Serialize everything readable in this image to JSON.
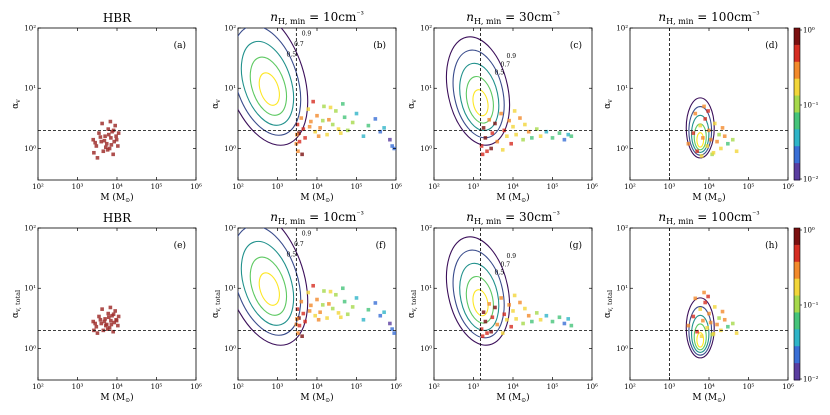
{
  "figure": {
    "colorbar_ticks": [
      "10⁰",
      "10⁻¹",
      "10⁻²"
    ],
    "colorbar_colors": [
      "#5a3da0",
      "#3a6fd6",
      "#2fb4c8",
      "#46c47a",
      "#a6d94c",
      "#f2d63a",
      "#f28a2c",
      "#d62d22",
      "#7a1010"
    ],
    "contour_colors": [
      "#3b0f5a",
      "#3a4c8c",
      "#21918c",
      "#5ec962",
      "#fde725"
    ]
  },
  "chart_data": [
    {
      "type": "scatter",
      "tag": "(a)",
      "title": "HBR",
      "xlabel": "M (M_⊙)",
      "ylabel": "α_v",
      "xlim": [
        100,
        1000000
      ],
      "ylim": [
        0.3,
        100
      ],
      "log_x": true,
      "log_y": true,
      "xticks": [
        "10²",
        "10³",
        "10⁴",
        "10⁵",
        "10⁶"
      ],
      "yticks": [
        "10⁰",
        "10¹",
        "10²"
      ],
      "hline": 2,
      "vline": null,
      "contours": "none",
      "colorbar": false,
      "points": [
        [
          2500,
          1.4
        ],
        [
          3000,
          1.1
        ],
        [
          3500,
          1.8
        ],
        [
          4000,
          1.3
        ],
        [
          4500,
          0.9
        ],
        [
          5000,
          1.6
        ],
        [
          5500,
          1.2
        ],
        [
          6000,
          2.1
        ],
        [
          6500,
          1.0
        ],
        [
          7000,
          1.5
        ],
        [
          7500,
          1.9
        ],
        [
          8000,
          0.8
        ],
        [
          8500,
          1.3
        ],
        [
          9000,
          2.4
        ],
        [
          3200,
          0.7
        ],
        [
          4200,
          2.6
        ],
        [
          5200,
          1.05
        ],
        [
          6200,
          1.7
        ],
        [
          7200,
          1.15
        ],
        [
          8200,
          2.0
        ],
        [
          9500,
          1.6
        ],
        [
          2800,
          1.25
        ],
        [
          10500,
          1.1
        ],
        [
          3800,
          1.55
        ],
        [
          5800,
          0.95
        ],
        [
          6800,
          2.8
        ],
        [
          4800,
          1.35
        ],
        [
          11000,
          1.8
        ],
        [
          2600,
          0.85
        ],
        [
          9800,
          1.4
        ]
      ]
    },
    {
      "type": "scatter",
      "tag": "(b)",
      "title": "n_{H, min} = 10cm⁻³",
      "xlabel": "M (M_⊙)",
      "ylabel": "α_v",
      "xlim": [
        100,
        1000000
      ],
      "ylim": [
        0.3,
        100
      ],
      "log_x": true,
      "log_y": true,
      "xticks": [
        "10²",
        "10³",
        "10⁴",
        "10⁵",
        "10⁶"
      ],
      "yticks": [
        "10⁰",
        "10¹",
        "10²"
      ],
      "hline": 2,
      "vline": 3000,
      "contours": "broad",
      "colorbar": false,
      "contour_labels": [
        "0.9",
        "0.7",
        "0.5"
      ],
      "points": [
        [
          3000,
          1.2
        ],
        [
          3200,
          2.5
        ],
        [
          3500,
          1.8
        ],
        [
          4000,
          3.2
        ],
        [
          4500,
          2.1
        ],
        [
          5000,
          1.5
        ],
        [
          6000,
          4.5
        ],
        [
          7000,
          2.8
        ],
        [
          8000,
          6.0
        ],
        [
          9000,
          1.9
        ],
        [
          10000,
          3.5
        ],
        [
          12000,
          2.2
        ],
        [
          15000,
          5.0
        ],
        [
          18000,
          1.7
        ],
        [
          20000,
          3.0
        ],
        [
          25000,
          2.5
        ],
        [
          30000,
          4.2
        ],
        [
          40000,
          1.8
        ],
        [
          50000,
          3.3
        ],
        [
          60000,
          2.0
        ],
        [
          80000,
          2.7
        ],
        [
          100000,
          3.8
        ],
        [
          150000,
          1.6
        ],
        [
          200000,
          2.4
        ],
        [
          300000,
          3.1
        ],
        [
          400000,
          1.9
        ],
        [
          500000,
          2.2
        ],
        [
          700000,
          1.4
        ],
        [
          800000,
          1.1
        ],
        [
          900000,
          1.0
        ],
        [
          3300,
          0.9
        ],
        [
          3600,
          1.3
        ],
        [
          4200,
          0.8
        ],
        [
          3100,
          1.7
        ],
        [
          6500,
          2.3
        ],
        [
          11000,
          1.6
        ],
        [
          14000,
          2.9
        ],
        [
          22000,
          4.8
        ],
        [
          35000,
          2.1
        ],
        [
          45000,
          5.5
        ]
      ]
    },
    {
      "type": "scatter",
      "tag": "(c)",
      "title": "n_{H, min} = 30cm⁻³",
      "xlabel": "M (M_⊙)",
      "ylabel": "α_v",
      "xlim": [
        100,
        1000000
      ],
      "ylim": [
        0.3,
        100
      ],
      "log_x": true,
      "log_y": true,
      "xticks": [
        "10²",
        "10³",
        "10⁴",
        "10⁵",
        "10⁶"
      ],
      "yticks": [
        "10⁰",
        "10¹",
        "10²"
      ],
      "hline": 2,
      "vline": 1500,
      "contours": "mid",
      "colorbar": false,
      "contour_labels": [
        "0.9",
        "0.7",
        "0.5"
      ],
      "points": [
        [
          1600,
          1.1
        ],
        [
          1800,
          2.2
        ],
        [
          2000,
          1.5
        ],
        [
          2500,
          3.0
        ],
        [
          3000,
          1.8
        ],
        [
          3500,
          2.6
        ],
        [
          4000,
          1.3
        ],
        [
          5000,
          3.8
        ],
        [
          6000,
          2.0
        ],
        [
          7000,
          1.6
        ],
        [
          8000,
          2.9
        ],
        [
          9000,
          1.2
        ],
        [
          10000,
          2.3
        ],
        [
          12000,
          1.7
        ],
        [
          15000,
          3.2
        ],
        [
          18000,
          1.4
        ],
        [
          20000,
          2.5
        ],
        [
          25000,
          1.9
        ],
        [
          30000,
          1.5
        ],
        [
          40000,
          2.1
        ],
        [
          50000,
          1.6
        ],
        [
          70000,
          1.9
        ],
        [
          100000,
          1.5
        ],
        [
          150000,
          1.8
        ],
        [
          200000,
          1.4
        ],
        [
          250000,
          1.7
        ],
        [
          300000,
          1.6
        ],
        [
          1700,
          0.8
        ],
        [
          2200,
          0.9
        ],
        [
          2800,
          1.0
        ],
        [
          5500,
          0.95
        ],
        [
          11000,
          4.2
        ]
      ]
    },
    {
      "type": "scatter",
      "tag": "(d)",
      "title": "n_{H, min} = 100cm⁻³",
      "xlabel": "M (M_⊙)",
      "ylabel": "α_v",
      "xlim": [
        100,
        1000000
      ],
      "ylim": [
        0.3,
        100
      ],
      "log_x": true,
      "log_y": true,
      "xticks": [
        "10²",
        "10³",
        "10⁴",
        "10⁵",
        "10⁶"
      ],
      "yticks": [
        "10⁰",
        "10¹",
        "10²"
      ],
      "hline": 2,
      "vline": 1000,
      "contours": "narrow",
      "colorbar": true,
      "points": [
        [
          3000,
          1.2
        ],
        [
          4000,
          1.8
        ],
        [
          5000,
          0.9
        ],
        [
          6000,
          2.4
        ],
        [
          7000,
          1.5
        ],
        [
          8000,
          3.1
        ],
        [
          9000,
          1.1
        ],
        [
          10000,
          2.0
        ],
        [
          11000,
          1.4
        ],
        [
          12000,
          0.8
        ],
        [
          14000,
          2.6
        ],
        [
          16000,
          1.3
        ],
        [
          18000,
          1.7
        ],
        [
          20000,
          1.0
        ],
        [
          25000,
          1.6
        ],
        [
          30000,
          1.2
        ],
        [
          40000,
          1.4
        ],
        [
          50000,
          0.9
        ],
        [
          4500,
          3.8
        ],
        [
          7500,
          5.0
        ],
        [
          9500,
          4.2
        ],
        [
          6500,
          0.75
        ],
        [
          13000,
          0.85
        ],
        [
          22000,
          2.2
        ]
      ]
    },
    {
      "type": "scatter",
      "tag": "(e)",
      "title": "HBR",
      "xlabel": "M (M_⊙)",
      "ylabel": "α_{v, total}",
      "xlim": [
        100,
        1000000
      ],
      "ylim": [
        0.3,
        100
      ],
      "log_x": true,
      "log_y": true,
      "xticks": [
        "10²",
        "10³",
        "10⁴",
        "10⁵",
        "10⁶"
      ],
      "yticks": [
        "10⁰",
        "10¹",
        "10²"
      ],
      "hline": 2,
      "vline": null,
      "contours": "none",
      "colorbar": false,
      "points": [
        [
          2500,
          2.8
        ],
        [
          3000,
          2.3
        ],
        [
          3500,
          3.4
        ],
        [
          4000,
          2.6
        ],
        [
          4500,
          2.0
        ],
        [
          5000,
          3.1
        ],
        [
          5500,
          2.5
        ],
        [
          6000,
          3.8
        ],
        [
          6500,
          2.2
        ],
        [
          7000,
          2.9
        ],
        [
          7500,
          3.5
        ],
        [
          8000,
          1.9
        ],
        [
          8500,
          2.7
        ],
        [
          9000,
          4.2
        ],
        [
          3200,
          1.8
        ],
        [
          4200,
          4.5
        ],
        [
          5200,
          2.4
        ],
        [
          6200,
          3.3
        ],
        [
          7200,
          2.5
        ],
        [
          8200,
          3.7
        ],
        [
          9500,
          3.0
        ],
        [
          2800,
          2.6
        ],
        [
          10500,
          2.4
        ],
        [
          3800,
          3.0
        ],
        [
          5800,
          2.1
        ],
        [
          6800,
          4.8
        ],
        [
          4800,
          2.8
        ],
        [
          11000,
          3.4
        ],
        [
          2600,
          2.0
        ],
        [
          9800,
          2.9
        ]
      ]
    },
    {
      "type": "scatter",
      "tag": "(f)",
      "title": "n_{H, min} = 10cm⁻³",
      "xlabel": "M (M_⊙)",
      "ylabel": "α_{v, total}",
      "xlim": [
        100,
        1000000
      ],
      "ylim": [
        0.3,
        100
      ],
      "log_x": true,
      "log_y": true,
      "xticks": [
        "10²",
        "10³",
        "10⁴",
        "10⁵",
        "10⁶"
      ],
      "yticks": [
        "10⁰",
        "10¹",
        "10²"
      ],
      "hline": 2,
      "vline": 3000,
      "contours": "broad",
      "colorbar": false,
      "contour_labels": [
        "0.9",
        "0.7",
        "0.5"
      ],
      "points": [
        [
          3000,
          2.5
        ],
        [
          3200,
          4.5
        ],
        [
          3500,
          3.2
        ],
        [
          4000,
          6.0
        ],
        [
          4500,
          3.8
        ],
        [
          5000,
          2.8
        ],
        [
          6000,
          8.5
        ],
        [
          7000,
          5.2
        ],
        [
          8000,
          11.0
        ],
        [
          9000,
          3.5
        ],
        [
          10000,
          6.5
        ],
        [
          12000,
          4.0
        ],
        [
          15000,
          9.0
        ],
        [
          18000,
          3.2
        ],
        [
          20000,
          5.5
        ],
        [
          25000,
          4.6
        ],
        [
          30000,
          7.8
        ],
        [
          40000,
          3.3
        ],
        [
          50000,
          6.0
        ],
        [
          60000,
          3.7
        ],
        [
          80000,
          4.9
        ],
        [
          100000,
          6.9
        ],
        [
          150000,
          3.0
        ],
        [
          200000,
          4.4
        ],
        [
          300000,
          5.7
        ],
        [
          400000,
          3.5
        ],
        [
          500000,
          4.0
        ],
        [
          700000,
          2.6
        ],
        [
          800000,
          2.1
        ],
        [
          900000,
          1.8
        ],
        [
          3300,
          1.8
        ],
        [
          3600,
          2.4
        ],
        [
          4200,
          1.6
        ],
        [
          3100,
          3.1
        ],
        [
          6500,
          4.2
        ],
        [
          11000,
          3.0
        ],
        [
          14000,
          5.3
        ],
        [
          22000,
          8.8
        ],
        [
          35000,
          3.9
        ],
        [
          45000,
          10.0
        ]
      ]
    },
    {
      "type": "scatter",
      "tag": "(g)",
      "title": "n_{H, min} = 30cm⁻³",
      "xlabel": "M (M_⊙)",
      "ylabel": "α_{v, total}",
      "xlim": [
        100,
        1000000
      ],
      "ylim": [
        0.3,
        100
      ],
      "log_x": true,
      "log_y": true,
      "xticks": [
        "10²",
        "10³",
        "10⁴",
        "10⁵",
        "10⁶"
      ],
      "yticks": [
        "10⁰",
        "10¹",
        "10²"
      ],
      "hline": 2,
      "vline": 1500,
      "contours": "mid",
      "colorbar": false,
      "contour_labels": [
        "0.9",
        "0.7",
        "0.5"
      ],
      "points": [
        [
          1600,
          2.1
        ],
        [
          1800,
          4.0
        ],
        [
          2000,
          2.8
        ],
        [
          2500,
          5.5
        ],
        [
          3000,
          3.3
        ],
        [
          3500,
          4.8
        ],
        [
          4000,
          2.5
        ],
        [
          5000,
          6.9
        ],
        [
          6000,
          3.7
        ],
        [
          7000,
          3.0
        ],
        [
          8000,
          5.3
        ],
        [
          9000,
          2.3
        ],
        [
          10000,
          4.2
        ],
        [
          12000,
          3.1
        ],
        [
          15000,
          5.8
        ],
        [
          18000,
          2.6
        ],
        [
          20000,
          4.6
        ],
        [
          25000,
          3.5
        ],
        [
          30000,
          2.8
        ],
        [
          40000,
          3.9
        ],
        [
          50000,
          3.0
        ],
        [
          70000,
          3.5
        ],
        [
          100000,
          2.8
        ],
        [
          150000,
          3.3
        ],
        [
          200000,
          2.6
        ],
        [
          250000,
          3.1
        ],
        [
          300000,
          2.4
        ],
        [
          1700,
          1.6
        ],
        [
          2200,
          1.8
        ],
        [
          2800,
          1.9
        ],
        [
          5500,
          1.8
        ],
        [
          11000,
          7.6
        ]
      ]
    },
    {
      "type": "scatter",
      "tag": "(h)",
      "title": "n_{H, min} = 100cm⁻³",
      "xlabel": "M (M_⊙)",
      "ylabel": "α_{v, total}",
      "xlim": [
        100,
        1000000
      ],
      "ylim": [
        0.3,
        100
      ],
      "log_x": true,
      "log_y": true,
      "xticks": [
        "10²",
        "10³",
        "10⁴",
        "10⁵",
        "10⁶"
      ],
      "yticks": [
        "10⁰",
        "10¹",
        "10²"
      ],
      "hline": 2,
      "vline": 1000,
      "contours": "narrow",
      "colorbar": true,
      "points": [
        [
          3000,
          2.4
        ],
        [
          4000,
          3.4
        ],
        [
          5000,
          1.9
        ],
        [
          6000,
          4.5
        ],
        [
          7000,
          2.9
        ],
        [
          8000,
          5.8
        ],
        [
          9000,
          2.2
        ],
        [
          10000,
          3.8
        ],
        [
          11000,
          2.7
        ],
        [
          12000,
          1.7
        ],
        [
          14000,
          4.9
        ],
        [
          16000,
          2.5
        ],
        [
          18000,
          3.2
        ],
        [
          20000,
          2.0
        ],
        [
          25000,
          3.0
        ],
        [
          30000,
          2.3
        ],
        [
          40000,
          2.6
        ],
        [
          50000,
          1.8
        ],
        [
          4500,
          6.8
        ],
        [
          7500,
          8.5
        ],
        [
          9500,
          7.3
        ],
        [
          6500,
          1.6
        ],
        [
          13000,
          1.75
        ],
        [
          22000,
          4.1
        ]
      ]
    }
  ]
}
